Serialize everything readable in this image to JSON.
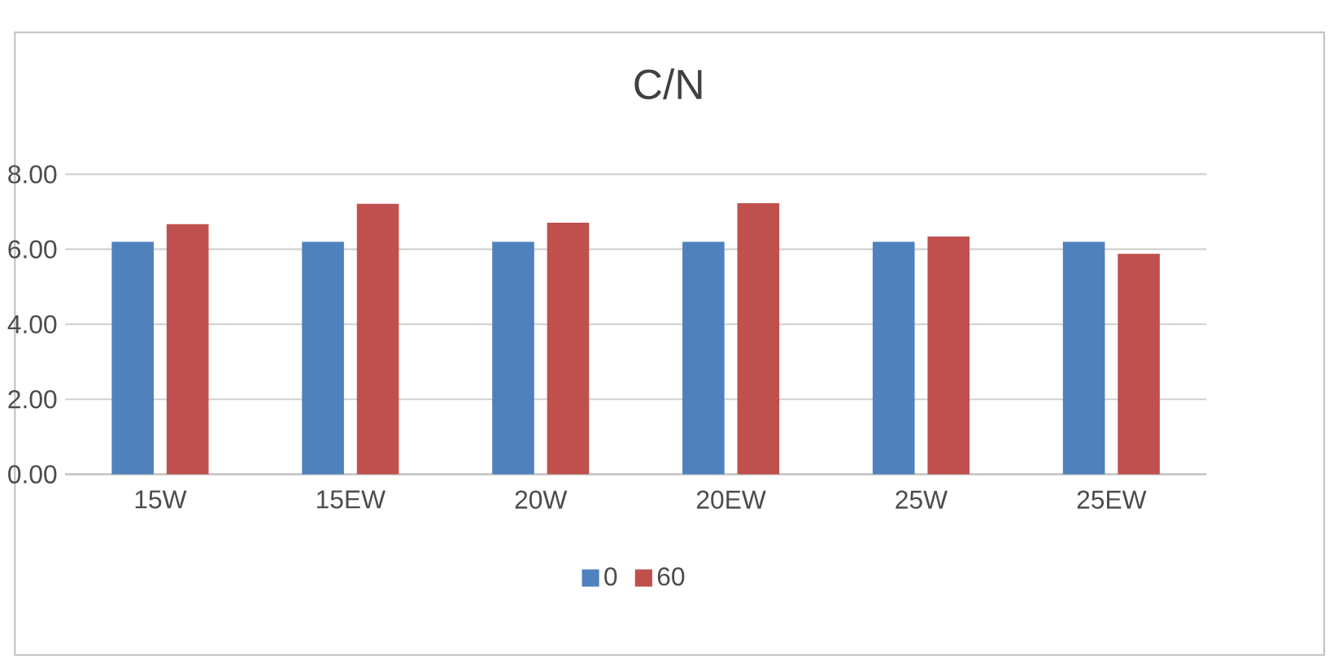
{
  "chart_data": {
    "type": "bar",
    "title": "C/N",
    "categories": [
      "15W",
      "15EW",
      "20W",
      "20EW",
      "25W",
      "25EW"
    ],
    "series": [
      {
        "name": "0",
        "color": "#4f81bd",
        "values": [
          6.2,
          6.2,
          6.2,
          6.2,
          6.2,
          6.2
        ]
      },
      {
        "name": "60",
        "color": "#c0504d",
        "values": [
          6.67,
          7.21,
          6.71,
          7.23,
          6.34,
          5.88
        ]
      }
    ],
    "ylim": [
      0,
      8
    ],
    "yticks": [
      {
        "value": 0,
        "label": "0.00"
      },
      {
        "value": 2,
        "label": "2.00"
      },
      {
        "value": 4,
        "label": "4.00"
      },
      {
        "value": 6,
        "label": "6.00"
      },
      {
        "value": 8,
        "label": "8.00"
      }
    ],
    "grid": "y",
    "legend": "bottom"
  }
}
